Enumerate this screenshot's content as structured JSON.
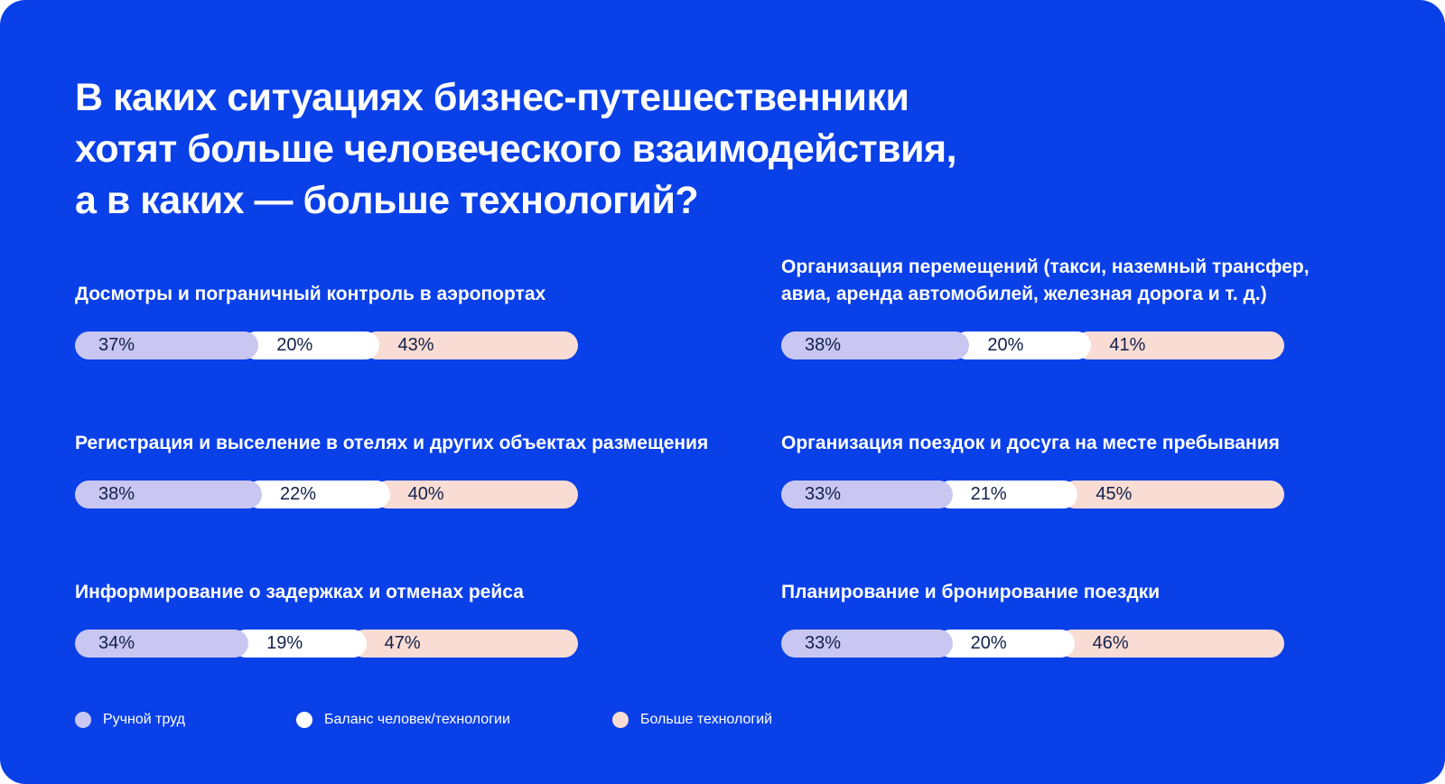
{
  "page": {
    "background": "#0A40E8"
  },
  "title": "В каких ситуациях бизнес-путешественники\nхотят больше человеческого взаимодействия,\nа в каких — больше технологий?",
  "chart_data": {
    "type": "bar",
    "orientation": "horizontal",
    "stacked": true,
    "unit": "%",
    "categories": [
      "Досмотры и пограничный контроль в аэропортах",
      "Регистрация и выселение в отелях и других объектах размещения",
      "Информирование о задержках и отменах рейса",
      "Организация перемещений (такси, наземный трансфер,\nавиа, аренда автомобилей, железная дорога и т. д.)",
      "Организация поездок и досуга на месте пребывания",
      "Планирование и бронирование поездки"
    ],
    "series": [
      {
        "name": "Ручной труд",
        "color": "#C9C6F2",
        "values": [
          37,
          38,
          34,
          38,
          33,
          33
        ]
      },
      {
        "name": "Баланс человек/технологии",
        "color": "#FFFFFF",
        "values": [
          20,
          22,
          19,
          20,
          21,
          20
        ]
      },
      {
        "name": "Больше технологий",
        "color": "#F9DCD3",
        "values": [
          43,
          40,
          47,
          41,
          45,
          46
        ]
      }
    ],
    "value_labels": [
      [
        "37%",
        "20%",
        "43%"
      ],
      [
        "38%",
        "22%",
        "40%"
      ],
      [
        "34%",
        "19%",
        "47%"
      ],
      [
        "38%",
        "20%",
        "41%"
      ],
      [
        "33%",
        "21%",
        "45%"
      ],
      [
        "33%",
        "20%",
        "46%"
      ]
    ],
    "legend_position": "bottom"
  },
  "legend": {
    "items": [
      {
        "label": "Ручной труд",
        "color": "#C9C6F2"
      },
      {
        "label": "Баланс человек/технологии",
        "color": "#FFFFFF"
      },
      {
        "label": "Больше технологий",
        "color": "#F9DCD3"
      }
    ]
  }
}
